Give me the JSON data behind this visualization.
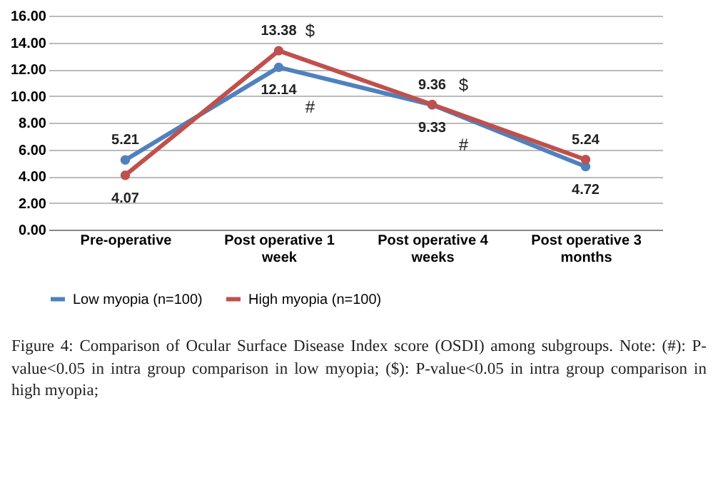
{
  "chart_data": {
    "type": "line",
    "categories": [
      "Pre-operative",
      "Post operative 1 week",
      "Post operative 4 weeks",
      "Post operative 3 months"
    ],
    "series": [
      {
        "name": "Low myopia (n=100)",
        "color": "#4f81bd",
        "values": [
          5.21,
          12.14,
          9.33,
          4.72
        ]
      },
      {
        "name": "High myopia (n=100)",
        "color": "#c0504d",
        "values": [
          4.07,
          13.38,
          9.36,
          5.24
        ]
      }
    ],
    "ylim": [
      0,
      16
    ],
    "yticks": [
      {
        "value": 0,
        "label": "0.00"
      },
      {
        "value": 2,
        "label": "2.00"
      },
      {
        "value": 4,
        "label": "4.00"
      },
      {
        "value": 6,
        "label": "6.00"
      },
      {
        "value": 8,
        "label": "8.00"
      },
      {
        "value": 10,
        "label": "10.00"
      },
      {
        "value": 12,
        "label": "12.00"
      },
      {
        "value": 14,
        "label": "14.00"
      },
      {
        "value": 16,
        "label": "16.00"
      }
    ],
    "grid": "y",
    "marker": "circle",
    "data_labels": true,
    "legend": "bottom",
    "annotations": [
      "$",
      "#",
      "$",
      "#",
      "Figure 4: Comparison of Ocular Surface Disease Index score (OSDI) among subgroups. Note: (#): P-value<0.05 in intra group comparison in low myopia; ($): P-value<0.05 in intra group comparison in high myopia;"
    ]
  }
}
